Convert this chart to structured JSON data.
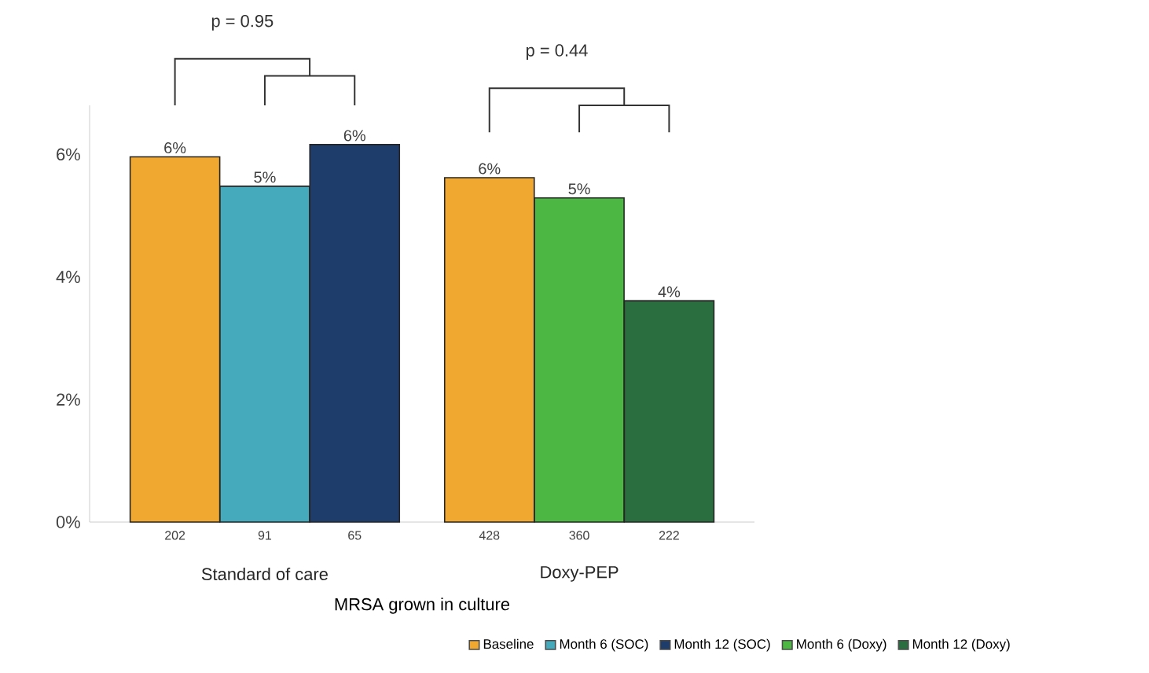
{
  "chart_data": {
    "type": "bar",
    "categories": [
      "202",
      "91",
      "65",
      "428",
      "360",
      "222"
    ],
    "xlabel": "MRSA grown in culture",
    "ylim": [
      0,
      6.8
    ],
    "yticks": [
      {
        "value": 0,
        "label": "0%"
      },
      {
        "value": 2,
        "label": "2%"
      },
      {
        "value": 4,
        "label": "4%"
      },
      {
        "value": 6,
        "label": "6%"
      }
    ],
    "series": [
      {
        "name": "Baseline",
        "color": "#f0a830",
        "values": [
          5.96,
          null,
          null,
          5.62,
          null,
          null
        ],
        "value_labels": [
          "6%",
          null,
          null,
          "6%",
          null,
          null
        ]
      },
      {
        "name": "Month 6 (SOC)",
        "color": "#45aabb",
        "values": [
          null,
          5.48,
          null,
          null,
          null,
          null
        ],
        "value_labels": [
          null,
          "5%",
          null,
          null,
          null,
          null
        ]
      },
      {
        "name": "Month 12 (SOC)",
        "color": "#1f3d6b",
        "values": [
          null,
          null,
          6.16,
          null,
          null,
          null
        ],
        "value_labels": [
          null,
          null,
          "6%",
          null,
          null,
          null
        ]
      },
      {
        "name": "Month 6 (Doxy)",
        "color": "#4cb843",
        "values": [
          null,
          null,
          null,
          null,
          5.29,
          null
        ],
        "value_labels": [
          null,
          null,
          null,
          null,
          "5%",
          null
        ]
      },
      {
        "name": "Month 12 (Doxy)",
        "color": "#2a6e40",
        "values": [
          null,
          null,
          null,
          null,
          null,
          3.61
        ],
        "value_labels": [
          null,
          null,
          null,
          null,
          null,
          "4%"
        ]
      }
    ],
    "annotations": [
      "p = 0.95",
      "p = 0.44",
      "Standard of care",
      "Doxy-PEP"
    ],
    "legend": "bottom"
  }
}
